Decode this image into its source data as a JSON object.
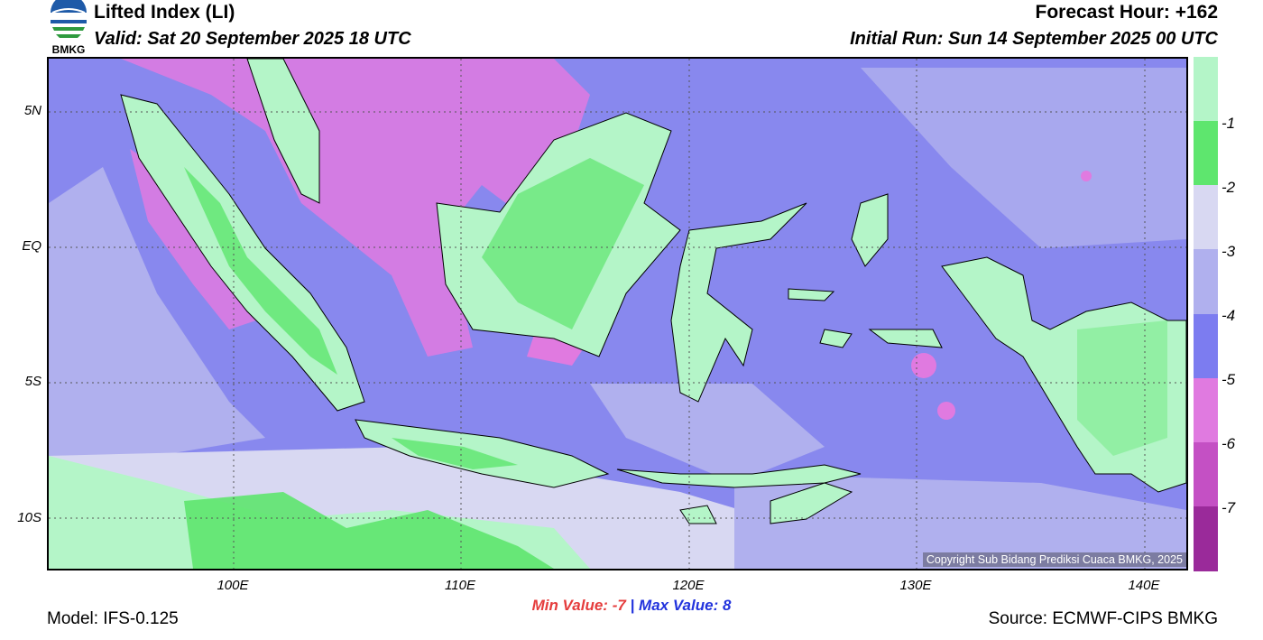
{
  "header": {
    "logo_text": "BMKG",
    "title": "Lifted Index (LI)",
    "valid": "Valid: Sat 20 September 2025 18 UTC",
    "forecast_hour": "Forecast Hour: +162",
    "initial_run": "Initial Run: Sun 14 September 2025 00 UTC"
  },
  "map": {
    "lat_labels": [
      "5N",
      "EQ",
      "5S",
      "10S"
    ],
    "lon_labels": [
      "100E",
      "110E",
      "120E",
      "130E",
      "140E"
    ],
    "copyright": "Copyright Sub Bidang Prediksi Cuaca BMKG, 2025"
  },
  "colorbar": {
    "labels": [
      "-1",
      "-2",
      "-3",
      "-4",
      "-5",
      "-6",
      "-7"
    ],
    "colors": [
      "#b4f5c8",
      "#5ee66e",
      "#d8d8f2",
      "#b0b0ee",
      "#7c7cf0",
      "#e07ae0",
      "#c450c4",
      "#9a2a9a"
    ]
  },
  "stats": {
    "min_label": "Min Value:",
    "min_value": "-7",
    "separator": "|",
    "max_label": "Max Value:",
    "max_value": "8"
  },
  "footer": {
    "model": "Model: IFS-0.125",
    "source": "Source: ECMWF-CIPS BMKG"
  }
}
